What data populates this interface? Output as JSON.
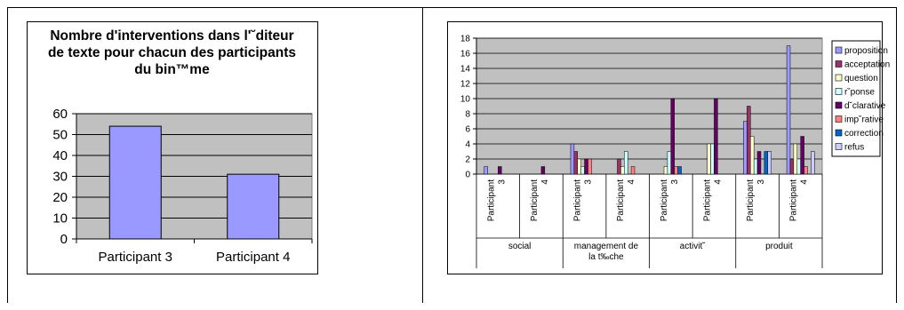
{
  "chart_data": [
    {
      "type": "bar",
      "title": "Nombre d'interventions dans l'˘diteur de texte pour chacun des participants du bin™me",
      "categories": [
        "Participant 3",
        "Participant 4"
      ],
      "values": [
        54,
        31
      ],
      "ylim": [
        0,
        60
      ],
      "yticks": [
        "0",
        "10",
        "20",
        "30",
        "40",
        "50",
        "60"
      ],
      "grid": true,
      "colors": {
        "bar": "#9999ff",
        "plot_bg": "#c0c0c0"
      }
    },
    {
      "type": "bar",
      "groups": [
        {
          "label": "social",
          "participants": [
            "Participant 3",
            "Participant 4"
          ]
        },
        {
          "label": "management de la t‰che",
          "participants": [
            "Participant 3",
            "Participant 4"
          ]
        },
        {
          "label": "activit˘",
          "participants": [
            "Participant 3",
            "Participant 4"
          ]
        },
        {
          "label": "produit",
          "participants": [
            "Participant 3",
            "Participant 4"
          ]
        }
      ],
      "group_label_lines": [
        [
          "social"
        ],
        [
          "management de",
          "la t‰che"
        ],
        [
          "activit˘"
        ],
        [
          "produit"
        ]
      ],
      "participant_label_lines": [
        "Participant",
        "3",
        "Participant",
        "4"
      ],
      "series": [
        {
          "name": "proposition",
          "color": "#9999ff",
          "values": [
            1,
            0,
            4,
            0,
            0,
            0,
            7,
            17
          ]
        },
        {
          "name": "acceptation",
          "color": "#993366",
          "values": [
            0,
            0,
            3,
            2,
            0,
            0,
            9,
            2
          ]
        },
        {
          "name": "question",
          "color": "#ffffcc",
          "values": [
            0,
            0,
            2,
            1,
            1,
            4,
            5,
            4
          ]
        },
        {
          "name": "r˘ponse",
          "color": "#ccffff",
          "values": [
            0,
            0,
            1,
            3,
            3,
            4,
            2,
            2
          ]
        },
        {
          "name": "d˘clarative",
          "color": "#660066",
          "values": [
            1,
            1,
            2,
            0,
            10,
            10,
            3,
            5
          ]
        },
        {
          "name": "imp˘rative",
          "color": "#ff8080",
          "values": [
            0,
            0,
            2,
            1,
            1,
            0,
            0,
            1
          ]
        },
        {
          "name": "correction",
          "color": "#0066cc",
          "values": [
            0,
            0,
            0,
            0,
            1,
            0,
            3,
            0
          ]
        },
        {
          "name": "refus",
          "color": "#ccccff",
          "values": [
            0,
            0,
            0,
            0,
            0,
            0,
            3,
            3
          ]
        }
      ],
      "ylim": [
        0,
        18
      ],
      "yticks": [
        "0",
        "2",
        "4",
        "6",
        "8",
        "10",
        "12",
        "14",
        "16",
        "18"
      ],
      "grid": true,
      "legend_position": "right",
      "colors": {
        "plot_bg": "#c0c0c0"
      }
    }
  ]
}
